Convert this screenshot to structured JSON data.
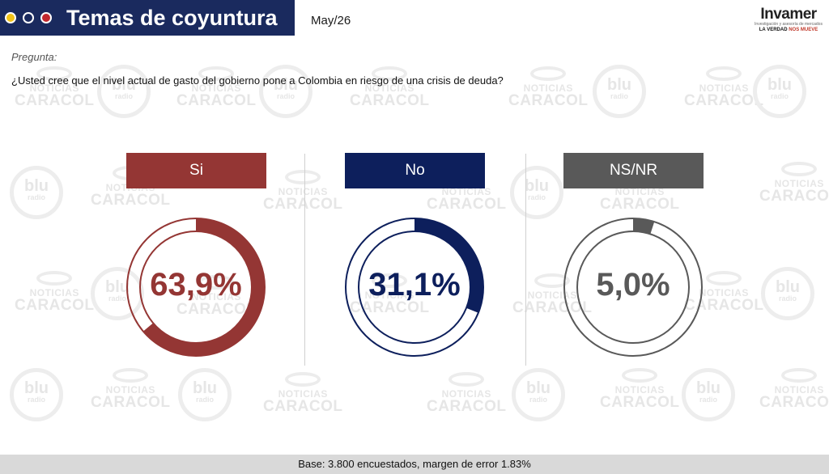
{
  "header": {
    "title": "Temas de coyuntura",
    "date": "May/26",
    "dot_colors": [
      "#f2c318",
      "#1a2a5e",
      "#c1272d"
    ]
  },
  "logo": {
    "name": "Invamer",
    "sub": "Investigación y asesoría de mercados",
    "tag_a": "LA VERDAD",
    "tag_b": "NOS MUEVE"
  },
  "watermark": {
    "top": "NOTICIAS",
    "bottom": "CARACOL",
    "blu_a": "blu",
    "blu_b": "radio"
  },
  "question": {
    "label": "Pregunta:",
    "text": "¿Usted cree que el nivel actual de gasto del gobierno pone a Colombia en riesgo de una crisis de deuda?"
  },
  "chart_data": {
    "type": "pie",
    "categories": [
      "Si",
      "No",
      "NS/NR"
    ],
    "values": [
      63.9,
      31.1,
      5.0
    ],
    "display": [
      "63,9%",
      "31,1%",
      "5,0%"
    ],
    "colors": [
      "#943634",
      "#0d1f5c",
      "#595959"
    ],
    "title": "",
    "legend": "none"
  },
  "footer": {
    "base": "Base: 3.800 encuestados, margen de error 1.83%"
  }
}
